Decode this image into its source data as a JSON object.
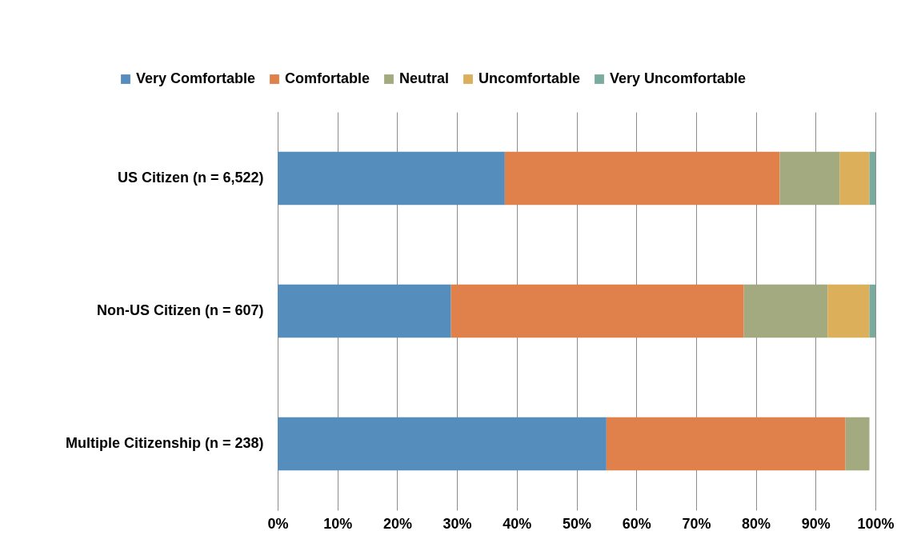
{
  "chart_data": {
    "type": "bar",
    "orientation": "horizontal",
    "stacked": true,
    "categories": [
      "US Citizen (n = 6,522)",
      "Non-US Citizen (n = 607)",
      "Multiple Citizenship (n = 238)"
    ],
    "series": [
      {
        "name": "Very Comfortable",
        "color": "#558dbd",
        "values": [
          38,
          29,
          55
        ]
      },
      {
        "name": "Comfortable",
        "color": "#e0804a",
        "values": [
          46,
          49,
          40
        ]
      },
      {
        "name": "Neutral",
        "color": "#a4aa80",
        "values": [
          10,
          14,
          4
        ]
      },
      {
        "name": "Uncomfortable",
        "color": "#dcb05b",
        "values": [
          5,
          7,
          0
        ]
      },
      {
        "name": "Very Uncomfortable",
        "color": "#7aab9e",
        "values": [
          1,
          1,
          0
        ]
      }
    ],
    "xlim": [
      0,
      100
    ],
    "xticks": [
      {
        "value": 0,
        "label": "0%"
      },
      {
        "value": 10,
        "label": "10%"
      },
      {
        "value": 20,
        "label": "20%"
      },
      {
        "value": 30,
        "label": "30%"
      },
      {
        "value": 40,
        "label": "40%"
      },
      {
        "value": 50,
        "label": "50%"
      },
      {
        "value": 60,
        "label": "60%"
      },
      {
        "value": 70,
        "label": "70%"
      },
      {
        "value": 80,
        "label": "80%"
      },
      {
        "value": 90,
        "label": "90%"
      },
      {
        "value": 100,
        "label": "100%"
      }
    ],
    "grid": "x",
    "legend": "top"
  }
}
